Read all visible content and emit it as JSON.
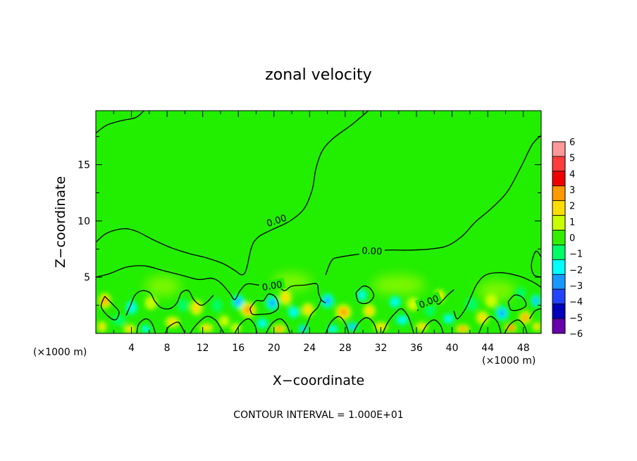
{
  "chart_data": {
    "type": "heatmap",
    "title": "zonal velocity",
    "xlabel": "X−coordinate",
    "ylabel": "Z−coordinate",
    "x_unit_left": "(×1000 m)",
    "x_unit_right": "(×1000 m)",
    "xlim": [
      0,
      50
    ],
    "ylim": [
      0,
      19.8
    ],
    "x_ticks": [
      4,
      8,
      12,
      16,
      20,
      24,
      28,
      32,
      36,
      40,
      44,
      48
    ],
    "y_ticks": [
      5,
      10,
      15
    ],
    "y_tick_labels": [
      "5",
      "10",
      "15"
    ],
    "colorbar_levels": [
      "6",
      "5",
      "4",
      "3",
      "2",
      "1",
      "0",
      "−1",
      "−2",
      "−3",
      "−4",
      "−5",
      "−6"
    ],
    "colorbar_colors": [
      "#ff9999",
      "#ff3c3c",
      "#ee0000",
      "#ff9900",
      "#ffdd00",
      "#c8ff00",
      "#33ee00",
      "#00ff66",
      "#00ffff",
      "#1899ff",
      "#2244ff",
      "#0000bb",
      "#6600aa"
    ],
    "background_value_color": "#22ee00",
    "contour_labels": [
      "0.00",
      "0.00",
      "0.00",
      "0.00",
      "0.00"
    ],
    "contour_lines": [
      [
        [
          0,
          17.8
        ],
        [
          1.2,
          18.5
        ],
        [
          2.8,
          18.9
        ],
        [
          4.5,
          19.2
        ],
        [
          5.4,
          19.8
        ]
      ],
      [
        [
          0,
          8.1
        ],
        [
          1.2,
          8.9
        ],
        [
          3,
          9.3
        ],
        [
          4.5,
          9.1
        ],
        [
          6.5,
          8.3
        ],
        [
          8.5,
          7.6
        ],
        [
          10.5,
          7.1
        ],
        [
          12.5,
          6.7
        ],
        [
          14.3,
          6.2
        ],
        [
          15.6,
          5.6
        ],
        [
          16.4,
          5.2
        ],
        [
          16.9,
          5.7
        ],
        [
          17.5,
          7.7
        ],
        [
          18.3,
          8.6
        ],
        [
          20,
          9.3
        ],
        [
          21.8,
          10.0
        ],
        [
          23.4,
          11.1
        ],
        [
          24.3,
          12.8
        ],
        [
          24.7,
          14.6
        ],
        [
          25.4,
          16.2
        ],
        [
          26.6,
          17.3
        ],
        [
          28.8,
          18.6
        ],
        [
          30.6,
          19.8
        ]
      ],
      [
        [
          0,
          5.0
        ],
        [
          1.5,
          5.3
        ],
        [
          3.5,
          5.9
        ],
        [
          5.5,
          6.0
        ],
        [
          7.5,
          5.6
        ],
        [
          9.5,
          5.2
        ],
        [
          11.5,
          4.8
        ],
        [
          13,
          4.9
        ],
        [
          14,
          4.5
        ],
        [
          15,
          3.6
        ],
        [
          15.6,
          3.0
        ],
        [
          16.2,
          3.8
        ],
        [
          17,
          4.4
        ],
        [
          18.3,
          4.3
        ],
        [
          19.3,
          4.3
        ]
      ],
      [
        [
          25.8,
          5.2
        ],
        [
          26.5,
          6.5
        ],
        [
          27.5,
          6.8
        ],
        [
          30,
          7.1
        ],
        [
          32.5,
          7.4
        ],
        [
          35,
          7.4
        ],
        [
          37.5,
          7.5
        ],
        [
          39.5,
          7.8
        ],
        [
          41.2,
          8.7
        ],
        [
          42.6,
          9.9
        ],
        [
          44.4,
          11.1
        ],
        [
          46.2,
          12.6
        ],
        [
          47.8,
          14.9
        ],
        [
          49,
          16.8
        ],
        [
          50,
          17.6
        ]
      ],
      [
        [
          50,
          6.8
        ],
        [
          49.4,
          7.3
        ],
        [
          48.9,
          6.1
        ],
        [
          49.2,
          5.2
        ],
        [
          50,
          5.0
        ]
      ],
      [
        [
          50,
          4.1
        ],
        [
          49,
          4.6
        ],
        [
          47.5,
          5.1
        ],
        [
          45.5,
          5.4
        ],
        [
          43.8,
          5.2
        ],
        [
          42.8,
          4.4
        ],
        [
          42.2,
          3.4
        ],
        [
          41.5,
          2.2
        ],
        [
          40.6,
          1.3
        ],
        [
          40.2,
          2.0
        ]
      ],
      [
        [
          19.5,
          4.1
        ],
        [
          20.5,
          4.1
        ],
        [
          21.2,
          3.8
        ],
        [
          22,
          4.2
        ],
        [
          23.5,
          4.3
        ],
        [
          24.8,
          4.4
        ],
        [
          25,
          3.6
        ],
        [
          25.3,
          3.0
        ],
        [
          25.8,
          2.7
        ]
      ],
      [
        [
          23.2,
          0
        ],
        [
          23.7,
          0.8
        ],
        [
          24.2,
          1.7
        ],
        [
          24.9,
          2.3
        ],
        [
          25.3,
          3.0
        ]
      ],
      [
        [
          1.0,
          3.3
        ],
        [
          2.0,
          2.5
        ],
        [
          2.6,
          1.9
        ],
        [
          2.2,
          1.2
        ],
        [
          1.3,
          1.6
        ],
        [
          0.6,
          2.4
        ],
        [
          1.0,
          3.3
        ]
      ],
      [
        [
          3.4,
          1.6
        ],
        [
          3.9,
          2.5
        ],
        [
          4.4,
          3.4
        ],
        [
          5.2,
          3.8
        ],
        [
          6.1,
          3.6
        ],
        [
          6.6,
          2.9
        ],
        [
          7.3,
          2.3
        ],
        [
          8.3,
          2.2
        ],
        [
          9.1,
          2.7
        ],
        [
          9.6,
          3.6
        ],
        [
          10.4,
          3.8
        ],
        [
          11.0,
          3.0
        ],
        [
          11.8,
          2.5
        ],
        [
          12.5,
          2.8
        ],
        [
          13.2,
          3.4
        ]
      ],
      [
        [
          4.6,
          0
        ],
        [
          4.8,
          0.8
        ],
        [
          5.6,
          1.3
        ],
        [
          6.3,
          0.9
        ],
        [
          6.7,
          0
        ]
      ],
      [
        [
          7.8,
          0
        ],
        [
          8.2,
          0.6
        ],
        [
          9.2,
          1.0
        ],
        [
          9.7,
          0.5
        ],
        [
          10,
          0
        ]
      ],
      [
        [
          10.6,
          0
        ],
        [
          11.2,
          0.7
        ],
        [
          12.4,
          1.5
        ],
        [
          13.4,
          1.2
        ],
        [
          14.0,
          0.5
        ],
        [
          14.4,
          0
        ]
      ],
      [
        [
          15.6,
          0
        ],
        [
          16.2,
          0.8
        ],
        [
          17.1,
          1.3
        ],
        [
          17.8,
          0.8
        ],
        [
          18.1,
          0
        ]
      ],
      [
        [
          19.1,
          0
        ],
        [
          19.8,
          0.9
        ],
        [
          20.7,
          1.3
        ],
        [
          21.4,
          0.8
        ],
        [
          21.8,
          0
        ]
      ],
      [
        [
          17.3,
          2.2
        ],
        [
          18.0,
          2.9
        ],
        [
          18.8,
          2.9
        ],
        [
          19.4,
          3.5
        ],
        [
          20.2,
          3.2
        ],
        [
          20.5,
          2.3
        ],
        [
          19.7,
          1.8
        ],
        [
          18.6,
          1.7
        ],
        [
          17.6,
          1.7
        ],
        [
          17.3,
          2.2
        ]
      ],
      [
        [
          25.8,
          0
        ],
        [
          26.4,
          1.0
        ],
        [
          27.3,
          1.5
        ],
        [
          28.0,
          0.9
        ],
        [
          28.4,
          0
        ]
      ],
      [
        [
          28.9,
          0
        ],
        [
          29.5,
          0.9
        ],
        [
          30.4,
          1.4
        ],
        [
          31.2,
          0.9
        ],
        [
          31.6,
          0
        ]
      ],
      [
        [
          29.2,
          3.6
        ],
        [
          30.0,
          4.2
        ],
        [
          30.8,
          4.0
        ],
        [
          31.2,
          3.3
        ],
        [
          30.5,
          2.7
        ],
        [
          29.5,
          2.8
        ],
        [
          29.2,
          3.6
        ]
      ],
      [
        [
          32.2,
          0
        ],
        [
          32.8,
          1.0
        ],
        [
          33.6,
          1.8
        ],
        [
          34.3,
          2.2
        ],
        [
          35.0,
          1.6
        ],
        [
          35.4,
          0.8
        ],
        [
          35.7,
          0
        ]
      ],
      [
        [
          36.1,
          2.0
        ],
        [
          36.8,
          2.7
        ],
        [
          37.7,
          3.0
        ],
        [
          38.4,
          2.6
        ],
        [
          38.8,
          2.8
        ],
        [
          39.5,
          3.4
        ],
        [
          40.2,
          3.9
        ]
      ],
      [
        [
          36.6,
          0
        ],
        [
          37.2,
          0.8
        ],
        [
          38.0,
          1.2
        ],
        [
          38.7,
          0.7
        ],
        [
          39.0,
          0
        ]
      ],
      [
        [
          43.0,
          0
        ],
        [
          43.5,
          0.9
        ],
        [
          44.3,
          1.5
        ],
        [
          45.1,
          1.0
        ],
        [
          45.5,
          0
        ]
      ],
      [
        [
          45.9,
          0
        ],
        [
          46.5,
          0.8
        ],
        [
          47.4,
          1.2
        ],
        [
          48.1,
          0.7
        ],
        [
          48.4,
          0
        ]
      ],
      [
        [
          46.3,
          2.8
        ],
        [
          47.0,
          3.4
        ],
        [
          47.9,
          3.2
        ],
        [
          48.3,
          2.5
        ],
        [
          47.5,
          2.1
        ],
        [
          46.6,
          2.1
        ],
        [
          46.3,
          2.8
        ]
      ],
      [
        [
          48.7,
          1.3
        ],
        [
          49.3,
          2.0
        ],
        [
          50,
          2.2
        ]
      ]
    ],
    "blobs": [
      {
        "x": 1.0,
        "y": 2.9,
        "value": 3,
        "rx": 0.7,
        "ry": 0.7
      },
      {
        "x": 0.7,
        "y": 0.6,
        "value": 2,
        "rx": 0.5,
        "ry": 0.5
      },
      {
        "x": 4.0,
        "y": 2.3,
        "value": -2,
        "rx": 0.7,
        "ry": 0.7
      },
      {
        "x": 6.2,
        "y": 2.7,
        "value": 1,
        "rx": 0.7,
        "ry": 0.6
      },
      {
        "x": 2.6,
        "y": 1.2,
        "value": -1,
        "rx": 0.8,
        "ry": 0.5
      },
      {
        "x": 3.8,
        "y": 0.4,
        "value": 2,
        "rx": 0.7,
        "ry": 0.4
      },
      {
        "x": 5.6,
        "y": 0.4,
        "value": -2,
        "rx": 0.6,
        "ry": 0.4
      },
      {
        "x": 8.6,
        "y": 1.0,
        "value": 2,
        "rx": 0.8,
        "ry": 0.5
      },
      {
        "x": 9.8,
        "y": 2.5,
        "value": -1,
        "rx": 0.6,
        "ry": 0.6
      },
      {
        "x": 11.3,
        "y": 2.3,
        "value": 2,
        "rx": 0.7,
        "ry": 0.7
      },
      {
        "x": 12.4,
        "y": 0.5,
        "value": 2,
        "rx": 0.8,
        "ry": 0.4
      },
      {
        "x": 13.6,
        "y": 2.5,
        "value": -1,
        "rx": 0.6,
        "ry": 0.6
      },
      {
        "x": 14.4,
        "y": 1.1,
        "value": 1,
        "rx": 0.6,
        "ry": 0.5
      },
      {
        "x": 16.0,
        "y": 2.8,
        "value": -3,
        "rx": 0.8,
        "ry": 0.7
      },
      {
        "x": 17.1,
        "y": 2.1,
        "value": 3,
        "rx": 0.9,
        "ry": 0.7
      },
      {
        "x": 15.7,
        "y": 0.5,
        "value": 1,
        "rx": 0.6,
        "ry": 0.4
      },
      {
        "x": 18.7,
        "y": 0.9,
        "value": -2,
        "rx": 0.7,
        "ry": 0.5
      },
      {
        "x": 19.8,
        "y": 2.7,
        "value": -3,
        "rx": 0.8,
        "ry": 0.7
      },
      {
        "x": 20.6,
        "y": 0.4,
        "value": 3,
        "rx": 0.8,
        "ry": 0.4
      },
      {
        "x": 21.3,
        "y": 3.2,
        "value": 2,
        "rx": 0.7,
        "ry": 0.7
      },
      {
        "x": 22.2,
        "y": 1.9,
        "value": -2,
        "rx": 0.7,
        "ry": 0.6
      },
      {
        "x": 23.3,
        "y": 0.4,
        "value": -3,
        "rx": 0.6,
        "ry": 0.4
      },
      {
        "x": 23.8,
        "y": 2.1,
        "value": 2,
        "rx": 0.7,
        "ry": 0.6
      },
      {
        "x": 26.0,
        "y": 2.9,
        "value": -3,
        "rx": 0.8,
        "ry": 0.7
      },
      {
        "x": 27.8,
        "y": 1.9,
        "value": 3,
        "rx": 0.9,
        "ry": 0.7
      },
      {
        "x": 26.6,
        "y": 0.4,
        "value": -2,
        "rx": 0.7,
        "ry": 0.4
      },
      {
        "x": 28.8,
        "y": 0.6,
        "value": -3,
        "rx": 0.7,
        "ry": 0.4
      },
      {
        "x": 29.9,
        "y": 3.4,
        "value": -2,
        "rx": 0.6,
        "ry": 0.6
      },
      {
        "x": 30.7,
        "y": 2.0,
        "value": 2,
        "rx": 0.7,
        "ry": 0.6
      },
      {
        "x": 32.0,
        "y": 0.6,
        "value": 2,
        "rx": 0.8,
        "ry": 0.4
      },
      {
        "x": 33.6,
        "y": 2.8,
        "value": -2,
        "rx": 0.7,
        "ry": 0.6
      },
      {
        "x": 34.4,
        "y": 1.2,
        "value": -2,
        "rx": 0.8,
        "ry": 0.5
      },
      {
        "x": 35.6,
        "y": 2.6,
        "value": 1,
        "rx": 0.7,
        "ry": 0.6
      },
      {
        "x": 36.6,
        "y": 0.6,
        "value": 2,
        "rx": 0.7,
        "ry": 0.4
      },
      {
        "x": 37.5,
        "y": 2.1,
        "value": -1,
        "rx": 0.6,
        "ry": 0.6
      },
      {
        "x": 38.6,
        "y": 3.3,
        "value": 2,
        "rx": 0.6,
        "ry": 0.6
      },
      {
        "x": 39.6,
        "y": 1.3,
        "value": -2,
        "rx": 0.7,
        "ry": 0.5
      },
      {
        "x": 41.2,
        "y": 0.4,
        "value": 3,
        "rx": 0.8,
        "ry": 0.4
      },
      {
        "x": 42.2,
        "y": 2.6,
        "value": -1,
        "rx": 0.7,
        "ry": 0.6
      },
      {
        "x": 43.4,
        "y": 1.4,
        "value": 2,
        "rx": 0.7,
        "ry": 0.6
      },
      {
        "x": 44.4,
        "y": 2.9,
        "value": 1,
        "rx": 0.7,
        "ry": 0.6
      },
      {
        "x": 45.6,
        "y": 1.8,
        "value": -3,
        "rx": 0.8,
        "ry": 0.7
      },
      {
        "x": 46.6,
        "y": 0.5,
        "value": 4,
        "rx": 0.7,
        "ry": 0.4
      },
      {
        "x": 48.2,
        "y": 1.4,
        "value": 3,
        "rx": 0.7,
        "ry": 0.6
      },
      {
        "x": 47.7,
        "y": 3.6,
        "value": -1,
        "rx": 0.6,
        "ry": 0.5
      },
      {
        "x": 49.4,
        "y": 2.9,
        "value": -3,
        "rx": 0.6,
        "ry": 0.6
      },
      {
        "x": 49.5,
        "y": 0.6,
        "value": 2,
        "rx": 0.5,
        "ry": 0.4
      }
    ],
    "faint_patches": [
      {
        "x": 7.5,
        "y": 4.2,
        "value": 1,
        "rx": 2.0,
        "ry": 0.9
      },
      {
        "x": 22,
        "y": 4.6,
        "value": 1,
        "rx": 2.2,
        "ry": 0.8
      },
      {
        "x": 34,
        "y": 4.3,
        "value": 1,
        "rx": 3.0,
        "ry": 0.9
      },
      {
        "x": 45,
        "y": 3.8,
        "value": 1,
        "rx": 2.2,
        "ry": 0.9
      }
    ]
  },
  "footer": {
    "contour_interval": "CONTOUR INTERVAL =  1.000E+01"
  }
}
